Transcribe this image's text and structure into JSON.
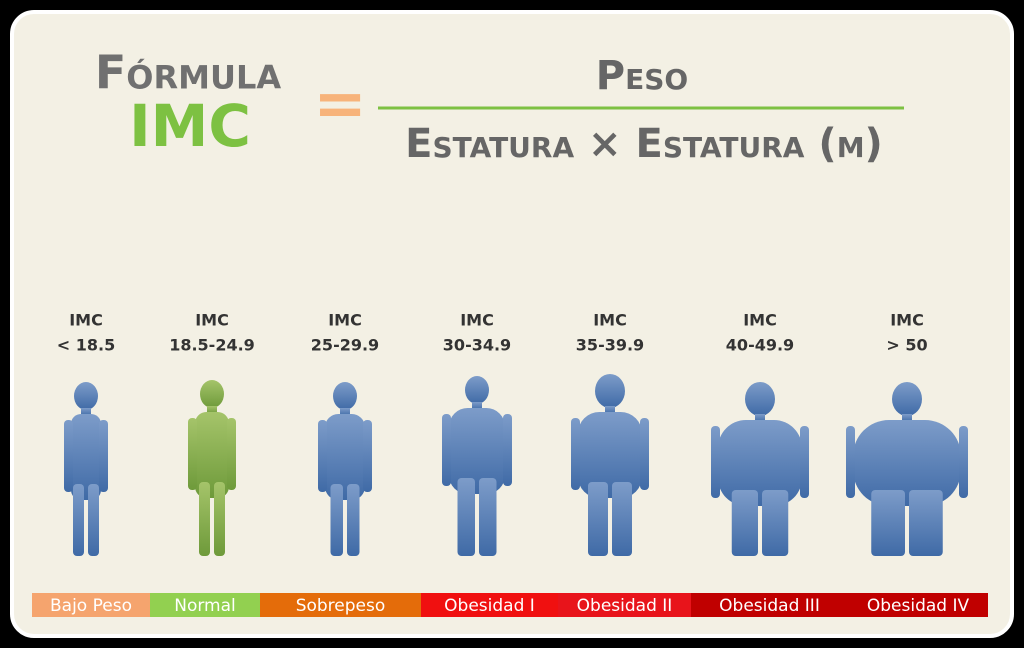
{
  "title": {
    "word": "Fórmula",
    "imc": "IMC",
    "equals": "="
  },
  "formula": {
    "numerator": "Peso",
    "denominator": "Estatura × Estatura (m)"
  },
  "categories": [
    {
      "imc": "IMC",
      "range": "< 18.5",
      "label": "Bajo Peso"
    },
    {
      "imc": "IMC",
      "range": "18.5-24.9",
      "label": "Normal"
    },
    {
      "imc": "IMC",
      "range": "25-29.9",
      "label": "Sobrepeso"
    },
    {
      "imc": "IMC",
      "range": "30-34.9",
      "label": "Obesidad I"
    },
    {
      "imc": "IMC",
      "range": "35-39.9",
      "label": "Obesidad II"
    },
    {
      "imc": "IMC",
      "range": "40-49.9",
      "label": "Obesidad III"
    },
    {
      "imc": "IMC",
      "range": "> 50",
      "label": "Obesidad IV"
    }
  ]
}
